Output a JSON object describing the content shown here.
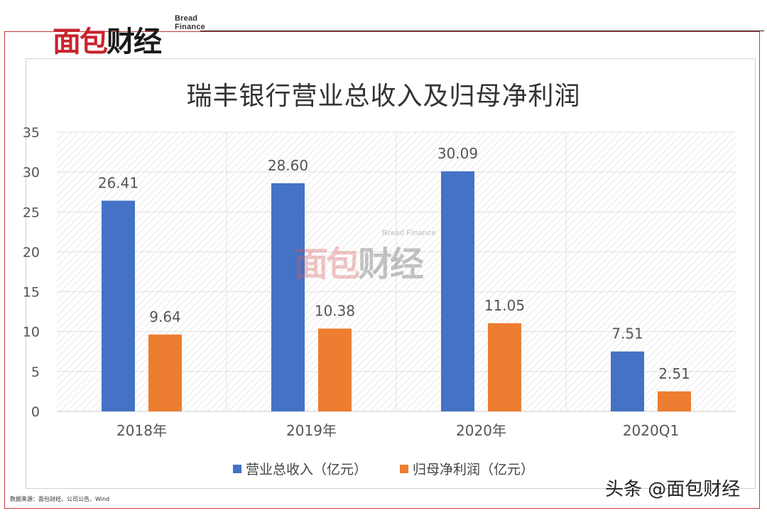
{
  "logo": {
    "sub": "Bread Finance",
    "text_red": "面包",
    "text_dark": "财经"
  },
  "watermark": {
    "sub": "Bread Finance",
    "text_red": "面包",
    "text_dark": "财经"
  },
  "source_note": "数据来源：面包财经、公司公告、Wind",
  "credit": "头条 @面包财经",
  "colors": {
    "revenue": "#4472C4",
    "profit": "#ED7D31",
    "frame": "#c43a3a"
  },
  "chart_data": {
    "type": "bar",
    "title": "瑞丰银行营业总收入及归母净利润",
    "categories": [
      "2018年",
      "2019年",
      "2020年",
      "2020Q1"
    ],
    "series": [
      {
        "name": "营业总收入（亿元）",
        "values": [
          26.41,
          28.6,
          30.09,
          7.51
        ]
      },
      {
        "name": "归母净利润（亿元）",
        "values": [
          9.64,
          10.38,
          11.05,
          2.51
        ]
      }
    ],
    "value_labels": [
      [
        "26.41",
        "28.60",
        "30.09",
        "7.51"
      ],
      [
        "9.64",
        "10.38",
        "11.05",
        "2.51"
      ]
    ],
    "ylim": [
      0,
      35
    ],
    "yticks": [
      "0",
      "5",
      "10",
      "15",
      "20",
      "25",
      "30",
      "35"
    ],
    "grid": true,
    "legend": "bottom"
  }
}
